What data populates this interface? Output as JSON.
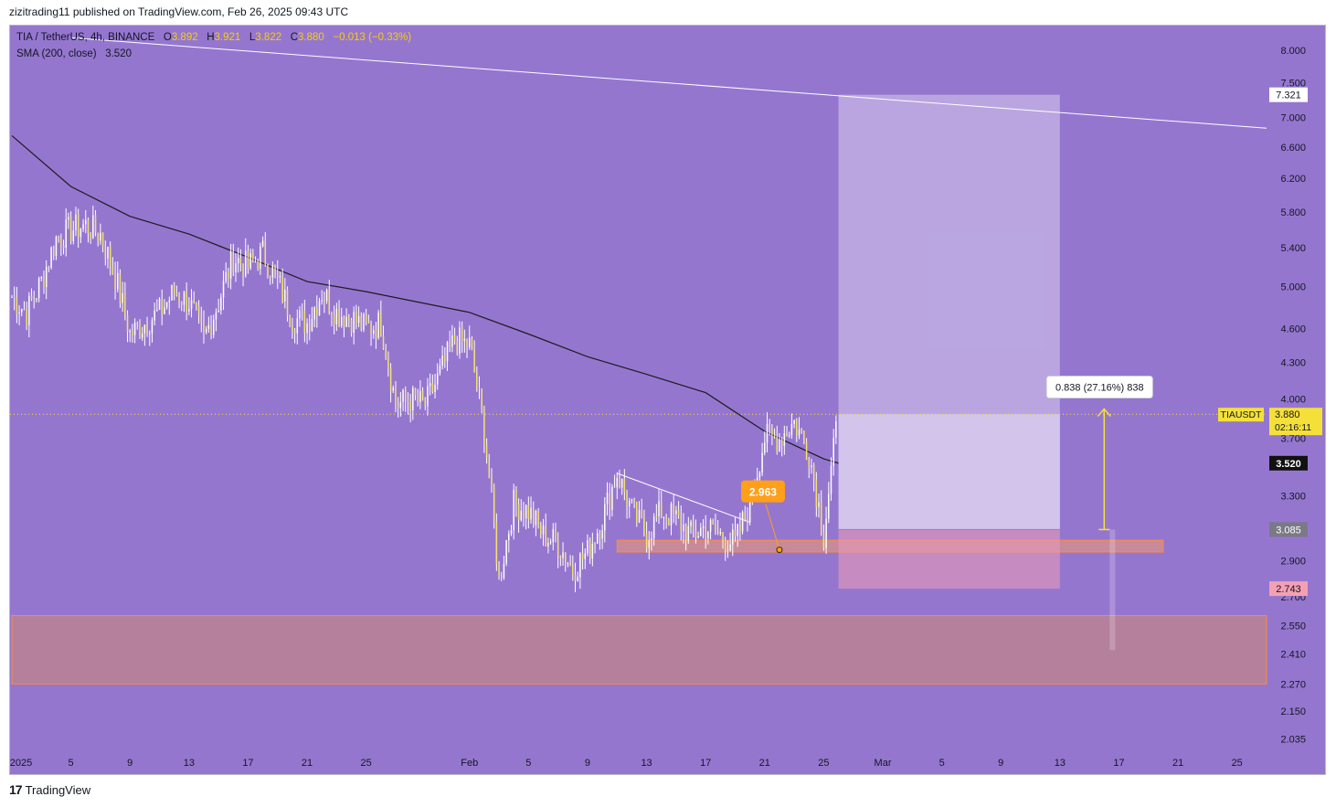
{
  "header": {
    "published_text": "zizitrading11 published on TradingView.com, Feb 26, 2025 09:43 UTC"
  },
  "legend": {
    "symbol": "TIA / TetherUS, 4h, BINANCE",
    "open_label": "O",
    "open": "3.892",
    "high_label": "H",
    "high": "3.921",
    "low_label": "L",
    "low": "3.822",
    "close_label": "C",
    "close": "3.880",
    "change": "−0.013 (−0.33%)",
    "sma_label": "SMA (200, close)",
    "sma_value": "3.520"
  },
  "footer": {
    "logo_glyph": "17",
    "brand": "TradingView"
  },
  "colors": {
    "background": "#9576cf",
    "candle": "#f5e06a",
    "wick": "#ffffff",
    "sma": "#1c1c1c",
    "trend_line": "#ffffff",
    "support_zone": "#f29a6e",
    "target_zone": "#dcd0ee",
    "stop_zone": "#e89ab8",
    "price_label": "#f5e03a",
    "measure_arrow": "#f5e03a"
  },
  "chart_data": {
    "type": "candlestick",
    "symbol": "TIAUSDT",
    "timeframe": "4h",
    "y_scale": "log",
    "ylim": [
      2.0,
      8.4
    ],
    "y_ticks": [
      "8.000",
      "7.500",
      "7.000",
      "6.600",
      "6.200",
      "5.800",
      "5.400",
      "5.000",
      "4.600",
      "4.300",
      "4.000",
      "3.700",
      "3.300",
      "2.900",
      "2.700",
      "2.550",
      "2.410",
      "2.270",
      "2.150",
      "2.035"
    ],
    "x_range": [
      "2025-01-01",
      "2025-03-27"
    ],
    "x_ticks": [
      {
        "date": "2025-01-01",
        "label": "2025"
      },
      {
        "date": "2025-01-05",
        "label": "5"
      },
      {
        "date": "2025-01-09",
        "label": "9"
      },
      {
        "date": "2025-01-13",
        "label": "13"
      },
      {
        "date": "2025-01-17",
        "label": "17"
      },
      {
        "date": "2025-01-21",
        "label": "21"
      },
      {
        "date": "2025-01-25",
        "label": "25"
      },
      {
        "date": "2025-02-01",
        "label": "Feb"
      },
      {
        "date": "2025-02-05",
        "label": "5"
      },
      {
        "date": "2025-02-09",
        "label": "9"
      },
      {
        "date": "2025-02-13",
        "label": "13"
      },
      {
        "date": "2025-02-17",
        "label": "17"
      },
      {
        "date": "2025-02-21",
        "label": "21"
      },
      {
        "date": "2025-02-25",
        "label": "25"
      },
      {
        "date": "2025-03-01",
        "label": "Mar"
      },
      {
        "date": "2025-03-05",
        "label": "5"
      },
      {
        "date": "2025-03-09",
        "label": "9"
      },
      {
        "date": "2025-03-13",
        "label": "13"
      },
      {
        "date": "2025-03-17",
        "label": "17"
      },
      {
        "date": "2025-03-21",
        "label": "21"
      },
      {
        "date": "2025-03-25",
        "label": "25"
      }
    ],
    "price_path": [
      [
        "2025-01-01",
        4.9
      ],
      [
        "2025-01-02",
        4.75
      ],
      [
        "2025-01-03",
        5.05
      ],
      [
        "2025-01-04",
        5.5
      ],
      [
        "2025-01-05",
        5.6
      ],
      [
        "2025-01-06",
        5.65
      ],
      [
        "2025-01-07",
        5.55
      ],
      [
        "2025-01-08",
        5.1
      ],
      [
        "2025-01-09",
        4.55
      ],
      [
        "2025-01-10",
        4.65
      ],
      [
        "2025-01-11",
        4.75
      ],
      [
        "2025-01-12",
        4.95
      ],
      [
        "2025-01-13",
        4.85
      ],
      [
        "2025-01-14",
        4.5
      ],
      [
        "2025-01-15",
        4.85
      ],
      [
        "2025-01-16",
        5.3
      ],
      [
        "2025-01-17",
        5.2
      ],
      [
        "2025-01-18",
        5.35
      ],
      [
        "2025-01-19",
        5.05
      ],
      [
        "2025-01-20",
        4.7
      ],
      [
        "2025-01-21",
        4.65
      ],
      [
        "2025-01-22",
        4.95
      ],
      [
        "2025-01-23",
        4.75
      ],
      [
        "2025-01-24",
        4.7
      ],
      [
        "2025-01-25",
        4.6
      ],
      [
        "2025-01-26",
        4.65
      ],
      [
        "2025-01-27",
        3.95
      ],
      [
        "2025-01-28",
        4.0
      ],
      [
        "2025-01-29",
        3.95
      ],
      [
        "2025-01-30",
        4.2
      ],
      [
        "2025-01-31",
        4.5
      ],
      [
        "2025-02-01",
        4.45
      ],
      [
        "2025-02-02",
        3.75
      ],
      [
        "2025-02-03",
        2.78
      ],
      [
        "2025-02-04",
        3.25
      ],
      [
        "2025-02-05",
        3.2
      ],
      [
        "2025-02-06",
        3.05
      ],
      [
        "2025-02-07",
        3.0
      ],
      [
        "2025-02-08",
        2.85
      ],
      [
        "2025-02-09",
        2.95
      ],
      [
        "2025-02-10",
        3.15
      ],
      [
        "2025-02-11",
        3.45
      ],
      [
        "2025-02-12",
        3.2
      ],
      [
        "2025-02-13",
        3.05
      ],
      [
        "2025-02-14",
        3.2
      ],
      [
        "2025-02-15",
        3.15
      ],
      [
        "2025-02-16",
        3.05
      ],
      [
        "2025-02-17",
        3.1
      ],
      [
        "2025-02-18",
        3.05
      ],
      [
        "2025-02-19",
        3.0
      ],
      [
        "2025-02-20",
        3.25
      ],
      [
        "2025-02-21",
        3.7
      ],
      [
        "2025-02-22",
        3.7
      ],
      [
        "2025-02-23",
        3.82
      ],
      [
        "2025-02-24",
        3.6
      ],
      [
        "2025-02-25",
        3.05
      ],
      [
        "2025-02-26",
        3.88
      ]
    ],
    "sma_200": [
      [
        "2025-01-01",
        6.75
      ],
      [
        "2025-01-05",
        6.1
      ],
      [
        "2025-01-09",
        5.75
      ],
      [
        "2025-01-13",
        5.55
      ],
      [
        "2025-01-17",
        5.3
      ],
      [
        "2025-01-21",
        5.05
      ],
      [
        "2025-01-25",
        4.95
      ],
      [
        "2025-02-01",
        4.75
      ],
      [
        "2025-02-05",
        4.55
      ],
      [
        "2025-02-09",
        4.35
      ],
      [
        "2025-02-13",
        4.2
      ],
      [
        "2025-02-17",
        4.05
      ],
      [
        "2025-02-21",
        3.75
      ],
      [
        "2025-02-25",
        3.55
      ],
      [
        "2025-02-26",
        3.52
      ]
    ],
    "trend_lines": [
      {
        "from": [
          "2025-01-05",
          8.2
        ],
        "to": [
          "2025-03-27",
          6.85
        ]
      },
      {
        "from": [
          "2025-02-11",
          3.45
        ],
        "to": [
          "2025-02-20",
          3.13
        ]
      }
    ],
    "zones": [
      {
        "name": "support-zone-lower",
        "x": [
          "2025-01-01",
          "2025-03-27"
        ],
        "y": [
          2.27,
          2.6
        ]
      },
      {
        "name": "support-zone-upper",
        "x": [
          "2025-02-11",
          "2025-03-20"
        ],
        "y": [
          2.95,
          3.02
        ]
      }
    ],
    "position": {
      "x": [
        "2025-02-26",
        "2025-03-13"
      ],
      "entry": 3.085,
      "target": 7.321,
      "stop": 2.743,
      "current_top": 3.88
    },
    "callout": {
      "text": "2.963",
      "point": [
        "2025-02-22",
        2.963
      ]
    },
    "measure": {
      "label": "0.838 (27.16%) 838",
      "date": "2025-03-16",
      "from": 3.085,
      "to": 3.92
    },
    "price_labels": [
      {
        "text": "7.321",
        "value": 7.321,
        "style": "white"
      },
      {
        "text": "3.520",
        "value": 3.52,
        "style": "black"
      },
      {
        "text": "3.085",
        "value": 3.085,
        "style": "gray"
      },
      {
        "text": "2.743",
        "value": 2.743,
        "style": "pink"
      }
    ],
    "last_price": {
      "symbol": "TIAUSDT",
      "price": "3.880",
      "countdown": "02:16:11",
      "value": 3.88
    }
  }
}
